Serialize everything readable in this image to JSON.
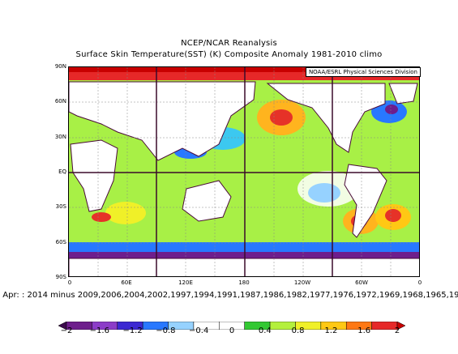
{
  "title_line1": "NCEP/NCAR Reanalysis",
  "title_line2": "Surface Skin Temperature(SST) (K) Composite Anomaly 1981-2010 climo",
  "credit": "NOAA/ESRL Physical Sciences Division",
  "composite_caption": "o Apr: : 2014 minus 2009,2006,2004,2002,1997,1994,1991,1987,1986,1982,1977,1976,1972,1969,1968,1965,19",
  "lat_labels": [
    "90N",
    "60N",
    "30N",
    "EQ",
    "30S",
    "60S",
    "90S"
  ],
  "lon_labels": [
    "0",
    "60E",
    "120E",
    "180",
    "120W",
    "60W",
    "0"
  ],
  "colorbar": {
    "tick_labels": [
      "−2",
      "−1.6",
      "−1.2",
      "−0.8",
      "−0.4",
      "0",
      "0.4",
      "0.8",
      "1.2",
      "1.6",
      "2"
    ],
    "colors": [
      "#3c0a4c",
      "#6e1e8c",
      "#8c3cc8",
      "#3c28d2",
      "#2878ff",
      "#96d2ff",
      "#ffffff",
      "#ffffff",
      "#32c832",
      "#b4f03c",
      "#f0f028",
      "#ffc814",
      "#ff7814",
      "#e62828",
      "#c80000"
    ]
  },
  "map": {
    "colors": {
      "ocean_mid": "#a8f046",
      "warm": "#f0f028",
      "warmer": "#ffb41e",
      "hot": "#e63228",
      "coolish": "#3cc8f0",
      "cool": "#2878ff",
      "cold": "#6e1e8c",
      "land": "#ffffff",
      "coast": "#4a0a3a"
    }
  }
}
